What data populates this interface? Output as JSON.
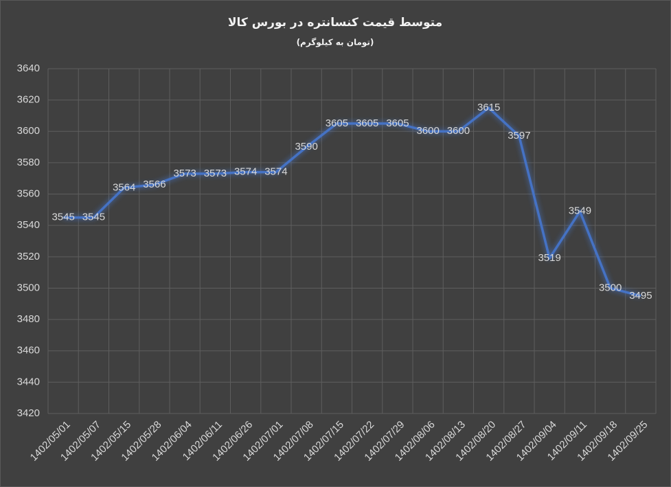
{
  "chart_data": {
    "type": "line",
    "title": "متوسط قیمت کنسانتره در بورس کالا",
    "subtitle": "(تومان به کیلوگرم)",
    "categories": [
      "1402/05/01",
      "1402/05/07",
      "1402/05/15",
      "1402/05/28",
      "1402/06/04",
      "1402/06/11",
      "1402/06/26",
      "1402/07/01",
      "1402/07/08",
      "1402/07/15",
      "1402/07/22",
      "1402/07/29",
      "1402/08/06",
      "1402/08/13",
      "1402/08/20",
      "1402/08/27",
      "1402/09/04",
      "1402/09/11",
      "1402/09/18",
      "1402/09/25"
    ],
    "values": [
      3545,
      3545,
      3564,
      3566,
      3573,
      3573,
      3574,
      3574,
      3590,
      3605,
      3605,
      3605,
      3600,
      3600,
      3615,
      3597,
      3519,
      3549,
      3500,
      3495
    ],
    "color": "#4472c4",
    "ylim": [
      3420,
      3640
    ],
    "yticks": [
      3420,
      3440,
      3460,
      3480,
      3500,
      3520,
      3540,
      3560,
      3580,
      3600,
      3620,
      3640
    ],
    "grid": true
  }
}
